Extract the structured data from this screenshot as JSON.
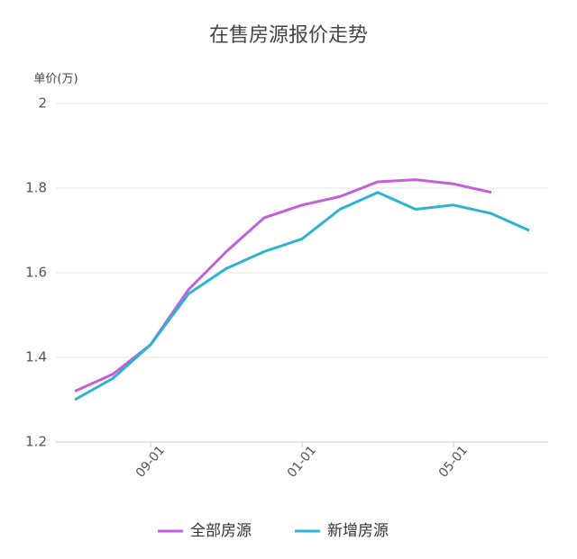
{
  "chart_data": {
    "type": "line",
    "title": "在售房源报价走势",
    "y_label": "单价(万)",
    "categories": [
      null,
      null,
      "09-01",
      null,
      null,
      null,
      "01-01",
      null,
      null,
      null,
      "05-01",
      null,
      null
    ],
    "series": [
      {
        "name": "全部房源",
        "color": "#c160d8",
        "values": [
          1.32,
          1.36,
          1.43,
          1.56,
          1.65,
          1.73,
          1.76,
          1.78,
          1.815,
          1.82,
          1.81,
          1.79,
          null
        ]
      },
      {
        "name": "新增房源",
        "color": "#2eb3cf",
        "values": [
          1.3,
          1.35,
          1.43,
          1.55,
          1.61,
          1.65,
          1.68,
          1.75,
          1.79,
          1.75,
          1.76,
          1.74,
          1.7
        ]
      }
    ],
    "ylim": [
      1.2,
      2
    ],
    "yticks": [
      1.2,
      1.4,
      1.6,
      1.8,
      2
    ],
    "grid": true
  }
}
